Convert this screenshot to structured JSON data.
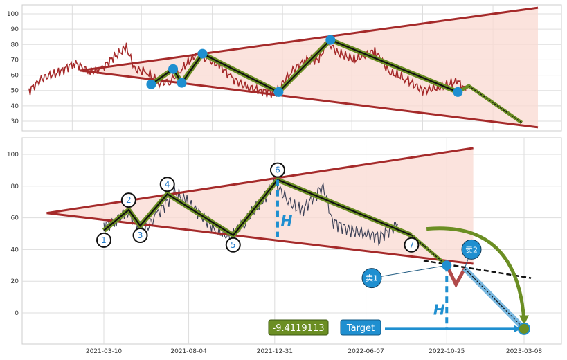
{
  "chart_data": [
    {
      "type": "line",
      "title": "",
      "xlabel": "",
      "ylabel": "",
      "ylim": [
        22,
        108
      ],
      "yticks": [
        30,
        40,
        50,
        60,
        70,
        80,
        90,
        100
      ],
      "grid": true,
      "series": [
        {
          "role": "price",
          "color": "#a52a2a",
          "x": [
            "2020-10-18",
            "2020-11-10",
            "2020-12-10",
            "2021-01-05",
            "2021-02-01",
            "2021-02-20",
            "2021-03-15",
            "2021-04-05",
            "2021-04-20",
            "2021-05-10",
            "2021-06-01",
            "2021-06-20",
            "2021-07-10",
            "2021-08-05",
            "2021-08-25",
            "2021-09-15",
            "2021-10-05",
            "2021-11-01",
            "2021-11-25",
            "2021-12-20",
            "2022-01-15",
            "2022-02-10",
            "2022-03-05",
            "2022-03-20",
            "2022-04-05",
            "2022-05-05",
            "2022-06-10",
            "2022-07-05",
            "2022-08-01",
            "2022-09-01",
            "2022-10-01",
            "2022-11-01",
            "2022-11-15"
          ],
          "values": [
            50,
            58,
            62,
            68,
            62,
            64,
            72,
            78,
            64,
            62,
            55,
            56,
            64,
            74,
            70,
            66,
            58,
            52,
            50,
            48,
            62,
            70,
            70,
            82,
            75,
            70,
            76,
            62,
            58,
            50,
            52,
            56,
            50
          ]
        }
      ],
      "pattern_points": [
        {
          "x": "2021-05-18",
          "y": 54
        },
        {
          "x": "2021-06-25",
          "y": 64
        },
        {
          "x": "2021-07-10",
          "y": 55
        },
        {
          "x": "2021-08-15",
          "y": 74
        },
        {
          "x": "2021-12-25",
          "y": 49
        },
        {
          "x": "2022-03-25",
          "y": 83
        },
        {
          "x": "2022-11-01",
          "y": 49
        }
      ],
      "triangle": {
        "upper": [
          {
            "x": "2021-01-15",
            "y": 63
          },
          {
            "x": "2023-03-20",
            "y": 104
          }
        ],
        "lower": [
          {
            "x": "2021-01-15",
            "y": 63
          },
          {
            "x": "2023-03-20",
            "y": 26
          }
        ]
      }
    },
    {
      "type": "line",
      "title": "",
      "xlabel": "",
      "ylabel": "",
      "ylim": [
        -20,
        110
      ],
      "yticks": [
        0,
        20,
        40,
        60,
        80,
        100
      ],
      "xticks": [
        "2021-03-10",
        "2021-08-04",
        "2021-12-31",
        "2022-06-07",
        "2022-10-25",
        "2023-03-08"
      ],
      "grid": true,
      "series": [
        {
          "role": "price",
          "color": "#3a3f55",
          "x": [
            "2021-03-10",
            "2021-03-30",
            "2021-04-20",
            "2021-05-10",
            "2021-05-20",
            "2021-06-10",
            "2021-07-10",
            "2021-08-01",
            "2021-08-25",
            "2021-09-20",
            "2021-10-15",
            "2021-11-10",
            "2021-12-10",
            "2021-12-31",
            "2022-01-25",
            "2022-02-15",
            "2022-03-10",
            "2022-03-25",
            "2022-04-10",
            "2022-05-10",
            "2022-06-07",
            "2022-07-01",
            "2022-08-01"
          ],
          "values": [
            55,
            58,
            64,
            55,
            52,
            62,
            76,
            70,
            62,
            52,
            48,
            58,
            70,
            82,
            70,
            64,
            74,
            80,
            58,
            52,
            50,
            48,
            56
          ]
        }
      ],
      "pattern_points": [
        {
          "label": "1",
          "x": "2021-03-10",
          "y": 52
        },
        {
          "label": "2",
          "x": "2021-04-22",
          "y": 65
        },
        {
          "label": "3",
          "x": "2021-05-12",
          "y": 55
        },
        {
          "label": "4",
          "x": "2021-06-28",
          "y": 75
        },
        {
          "label": "5",
          "x": "2021-10-20",
          "y": 49
        },
        {
          "label": "6",
          "x": "2022-01-05",
          "y": 84
        },
        {
          "label": "7",
          "x": "2022-08-25",
          "y": 49
        }
      ],
      "triangle": {
        "upper": [
          {
            "x": "2020-12-01",
            "y": 63
          },
          {
            "x": "2022-12-10",
            "y": 104
          }
        ],
        "lower": [
          {
            "x": "2020-12-01",
            "y": 63
          },
          {
            "x": "2022-12-10",
            "y": 31
          }
        ]
      },
      "height_marker": {
        "label": "H",
        "x": "2022-01-05",
        "y_from": 84,
        "y_to": 48
      },
      "target_marker": {
        "label": "H",
        "x": "2022-10-25",
        "y_from": 30,
        "y_to": -10
      },
      "sell_points": [
        {
          "label": "卖1",
          "x": "2022-10-25",
          "y": 30
        },
        {
          "label": "卖2",
          "x": "2022-11-25",
          "y": 28
        }
      ],
      "target": {
        "label": "Target",
        "x": "2023-03-08",
        "y": -10
      },
      "value_box": "-9.4119113"
    }
  ]
}
